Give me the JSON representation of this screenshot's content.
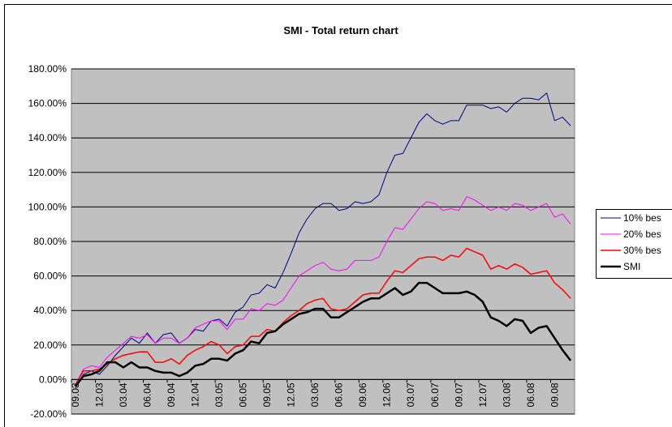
{
  "chart_data": {
    "type": "line",
    "title": "SMI - Total return chart",
    "categories": [
      "09.03",
      null,
      null,
      "12.03",
      null,
      null,
      "03.04",
      null,
      null,
      "06.04",
      null,
      null,
      "09.04",
      null,
      null,
      "12.04",
      null,
      null,
      "03.05",
      null,
      null,
      "06.05",
      null,
      null,
      "09.05",
      null,
      null,
      "12.05",
      null,
      null,
      "03.06",
      null,
      null,
      "06.06",
      null,
      null,
      "09.06",
      null,
      null,
      "12.06",
      null,
      null,
      "03.07",
      null,
      null,
      "06.07",
      null,
      null,
      "09.07",
      null,
      null,
      "12.07",
      null,
      null,
      "03.08",
      null,
      null,
      "06.08",
      null,
      null,
      "09.08",
      null,
      null
    ],
    "series": [
      {
        "name": "10% bes",
        "color": "#000080",
        "width": 1,
        "values": [
          -5,
          3,
          5,
          3,
          8,
          14,
          19,
          24,
          21,
          27,
          21,
          26,
          27,
          21,
          24,
          29,
          28,
          34,
          35,
          31,
          39,
          42,
          49,
          50,
          55,
          53,
          62,
          73,
          85,
          93,
          99,
          102,
          102,
          98,
          99,
          103,
          102,
          103,
          107,
          120,
          130,
          131,
          140,
          149,
          154,
          150,
          148,
          150,
          150,
          159,
          159,
          159,
          157,
          158,
          155,
          160,
          163,
          163,
          162,
          166,
          150,
          152,
          147
        ]
      },
      {
        "name": "20% bes",
        "color": "#ff00ff",
        "width": 1,
        "values": [
          -3,
          6,
          8,
          7,
          13,
          17,
          21,
          25,
          24,
          26,
          21,
          24,
          24,
          21,
          24,
          30,
          32,
          34,
          34,
          29,
          35,
          35,
          41,
          40,
          44,
          43,
          46,
          53,
          60,
          63,
          66,
          68,
          64,
          63,
          64,
          69,
          69,
          69,
          71,
          80,
          88,
          87,
          93,
          99,
          103,
          102,
          98,
          99,
          98,
          106,
          104,
          101,
          98,
          100,
          98,
          102,
          101,
          98,
          100,
          102,
          94,
          96,
          90
        ]
      },
      {
        "name": "30% bes",
        "color": "#ff0000",
        "width": 1.5,
        "values": [
          -3,
          5,
          5,
          6,
          9,
          12,
          14,
          15,
          16,
          16,
          10,
          10,
          12,
          9,
          14,
          17,
          19,
          22,
          20,
          15,
          19,
          20,
          25,
          25,
          29,
          28,
          33,
          37,
          40,
          44,
          46,
          47,
          41,
          40,
          41,
          45,
          49,
          50,
          50,
          57,
          63,
          62,
          66,
          70,
          71,
          71,
          69,
          72,
          71,
          76,
          74,
          72,
          64,
          66,
          64,
          67,
          65,
          61,
          62,
          63,
          56,
          52,
          47
        ]
      },
      {
        "name": "SMI",
        "color": "#000000",
        "width": 2.5,
        "values": [
          -4,
          2,
          3,
          5,
          10,
          10,
          7,
          10,
          7,
          7,
          5,
          4,
          4,
          2,
          4,
          8,
          9,
          12,
          12,
          11,
          15,
          17,
          22,
          21,
          27,
          28,
          32,
          35,
          38,
          39,
          41,
          41,
          36,
          36,
          39,
          42,
          45,
          47,
          47,
          50,
          53,
          49,
          51,
          56,
          56,
          53,
          50,
          50,
          50,
          51,
          49,
          45,
          36,
          34,
          31,
          35,
          34,
          27,
          30,
          31,
          24,
          17,
          11
        ]
      }
    ],
    "ylim": [
      -20,
      180
    ],
    "yticks": [
      {
        "value": -20,
        "label": "-20.00%"
      },
      {
        "value": 0,
        "label": "0.00%"
      },
      {
        "value": 20,
        "label": "20.00%"
      },
      {
        "value": 40,
        "label": "40.00%"
      },
      {
        "value": 60,
        "label": "60.00%"
      },
      {
        "value": 80,
        "label": "80.00%"
      },
      {
        "value": 100,
        "label": "100.00%"
      },
      {
        "value": 120,
        "label": "120.00%"
      },
      {
        "value": 140,
        "label": "140.00%"
      },
      {
        "value": 160,
        "label": "160.00%"
      },
      {
        "value": 180,
        "label": "180.00%"
      }
    ],
    "grid": true,
    "legend": "right"
  }
}
